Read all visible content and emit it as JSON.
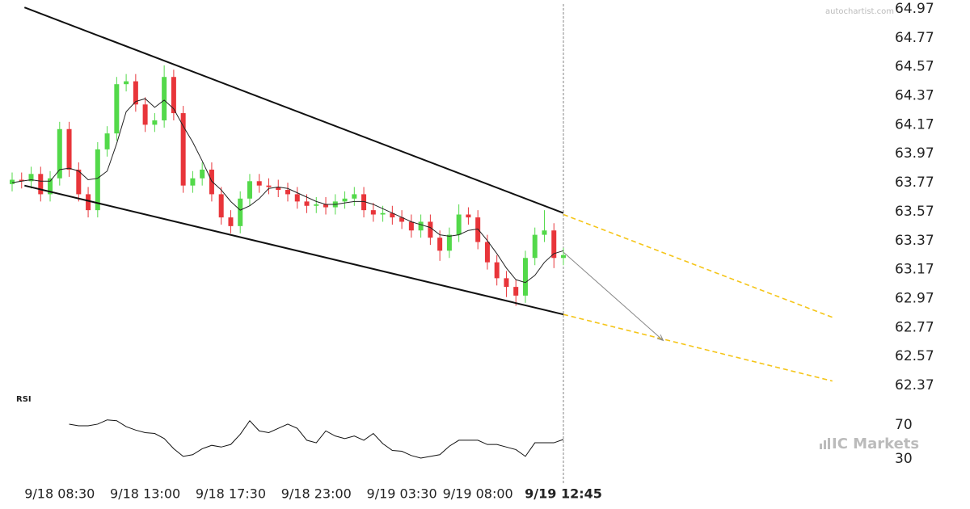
{
  "watermark": "autochartist.com",
  "brand": "IC Markets",
  "chart_data": [
    {
      "type": "candlestick",
      "categories": [
        null,
        null,
        null,
        null,
        null,
        "9/18 08:30",
        null,
        null,
        null,
        null,
        null,
        null,
        null,
        null,
        "9/18 13:00",
        null,
        null,
        null,
        null,
        null,
        null,
        null,
        null,
        "9/18 17:30",
        null,
        null,
        null,
        null,
        null,
        null,
        null,
        null,
        "9/18 23:00",
        null,
        null,
        null,
        null,
        null,
        null,
        null,
        null,
        "9/19 03:30",
        null,
        null,
        null,
        null,
        null,
        null,
        null,
        "9/19 08:00",
        null,
        null,
        null,
        null,
        null,
        null,
        null,
        null,
        "9/19 12:45"
      ],
      "open": [
        63.76,
        63.79,
        63.78,
        63.83,
        63.69,
        63.8,
        64.14,
        63.86,
        63.69,
        63.58,
        64.0,
        64.11,
        64.45,
        64.47,
        64.31,
        64.17,
        64.2,
        64.5,
        64.25,
        63.75,
        63.8,
        63.86,
        63.69,
        63.53,
        63.47,
        63.66,
        63.78,
        63.75,
        63.74,
        63.72,
        63.69,
        63.64,
        63.61,
        63.62,
        63.6,
        63.64,
        63.66,
        63.69,
        63.58,
        63.55,
        63.56,
        63.53,
        63.5,
        63.44,
        63.5,
        63.39,
        63.3,
        63.41,
        63.55,
        63.53,
        63.36,
        63.22,
        63.11,
        63.05,
        62.99,
        63.25,
        63.41,
        63.44,
        63.25
      ],
      "high": [
        63.84,
        63.84,
        63.88,
        63.88,
        63.85,
        64.19,
        64.19,
        63.91,
        63.74,
        64.05,
        64.16,
        64.5,
        64.52,
        64.52,
        64.36,
        64.25,
        64.58,
        64.55,
        64.3,
        63.85,
        63.91,
        63.91,
        63.74,
        63.58,
        63.71,
        63.83,
        63.83,
        63.8,
        63.79,
        63.77,
        63.74,
        63.69,
        63.67,
        63.67,
        63.69,
        63.71,
        63.74,
        63.74,
        63.63,
        63.61,
        63.61,
        63.58,
        63.55,
        63.55,
        63.55,
        63.44,
        63.46,
        63.62,
        63.6,
        63.58,
        63.41,
        63.27,
        63.16,
        63.1,
        63.3,
        63.46,
        63.58,
        63.49,
        63.32
      ],
      "low": [
        63.71,
        63.73,
        63.73,
        63.64,
        63.64,
        63.75,
        63.81,
        63.64,
        63.53,
        63.53,
        63.95,
        64.06,
        64.4,
        64.26,
        64.12,
        64.12,
        64.15,
        64.2,
        63.7,
        63.7,
        63.75,
        63.64,
        63.48,
        63.42,
        63.42,
        63.61,
        63.7,
        63.69,
        63.67,
        63.64,
        63.59,
        63.56,
        63.56,
        63.55,
        63.55,
        63.59,
        63.61,
        63.53,
        63.5,
        63.5,
        63.48,
        63.45,
        63.39,
        63.39,
        63.34,
        63.23,
        63.25,
        63.36,
        63.48,
        63.31,
        63.17,
        63.06,
        62.98,
        62.92,
        62.94,
        63.2,
        63.36,
        63.18,
        63.2
      ],
      "close": [
        63.79,
        63.78,
        63.83,
        63.69,
        63.8,
        64.14,
        63.86,
        63.69,
        63.58,
        64.0,
        64.11,
        64.45,
        64.47,
        64.31,
        64.17,
        64.2,
        64.5,
        64.25,
        63.75,
        63.8,
        63.86,
        63.69,
        63.53,
        63.47,
        63.66,
        63.78,
        63.75,
        63.74,
        63.72,
        63.69,
        63.64,
        63.61,
        63.62,
        63.6,
        63.64,
        63.66,
        63.69,
        63.58,
        63.55,
        63.56,
        63.53,
        63.5,
        63.44,
        63.5,
        63.39,
        63.3,
        63.41,
        63.55,
        63.53,
        63.36,
        63.22,
        63.11,
        63.05,
        62.99,
        63.25,
        63.41,
        63.44,
        63.25,
        63.27
      ],
      "ma": [
        63.77,
        63.78,
        63.79,
        63.78,
        63.78,
        63.86,
        63.87,
        63.85,
        63.79,
        63.8,
        63.85,
        64.04,
        64.26,
        64.33,
        64.35,
        64.29,
        64.34,
        64.28,
        64.16,
        64.05,
        63.92,
        63.78,
        63.72,
        63.64,
        63.58,
        63.61,
        63.66,
        63.73,
        63.74,
        63.73,
        63.7,
        63.67,
        63.64,
        63.62,
        63.62,
        63.63,
        63.64,
        63.64,
        63.62,
        63.59,
        63.56,
        63.53,
        63.5,
        63.48,
        63.46,
        63.41,
        63.4,
        63.41,
        63.44,
        63.45,
        63.37,
        63.28,
        63.18,
        63.1,
        63.08,
        63.13,
        63.22,
        63.28,
        63.3
      ],
      "up_color": "#53d94a",
      "down_color": "#e8353a",
      "ma_color": "#222222",
      "ylim": [
        62.37,
        64.97
      ],
      "yticks": [
        64.97,
        64.77,
        64.57,
        64.37,
        64.17,
        63.97,
        63.77,
        63.57,
        63.37,
        63.17,
        62.97,
        62.77,
        62.57,
        62.37
      ],
      "trendlines": [
        {
          "x": [
            1.3,
            58
          ],
          "y": [
            64.98,
            63.56
          ],
          "color": "#111111",
          "dashed": false
        },
        {
          "x": [
            1.3,
            58
          ],
          "y": [
            63.75,
            62.86
          ],
          "color": "#111111",
          "dashed": false
        },
        {
          "x": [
            58,
            86.3
          ],
          "y": [
            63.55,
            62.84
          ],
          "color": "#f5c518",
          "dashed": true
        },
        {
          "x": [
            58,
            86.3
          ],
          "y": [
            62.86,
            62.4
          ],
          "color": "#f5c518",
          "dashed": true
        }
      ],
      "arrow": {
        "x": [
          58,
          68.5
        ],
        "y": [
          63.29,
          62.68
        ],
        "color": "#888888"
      }
    },
    {
      "type": "line",
      "title": "RSI",
      "color": "#111111",
      "values": [
        null,
        null,
        null,
        null,
        null,
        null,
        71,
        69,
        69,
        71,
        76,
        75,
        68,
        64,
        61,
        60,
        54,
        42,
        33,
        35,
        42,
        46,
        44,
        47,
        59,
        75,
        63,
        61,
        66,
        71,
        66,
        52,
        49,
        63,
        57,
        54,
        57,
        52,
        60,
        48,
        40,
        39,
        34,
        31,
        33,
        35,
        45,
        52,
        52,
        52,
        47,
        47,
        44,
        41,
        33,
        49,
        49,
        49,
        53
      ],
      "ylim": [
        20,
        80
      ],
      "yticks": [
        70,
        30
      ]
    }
  ]
}
